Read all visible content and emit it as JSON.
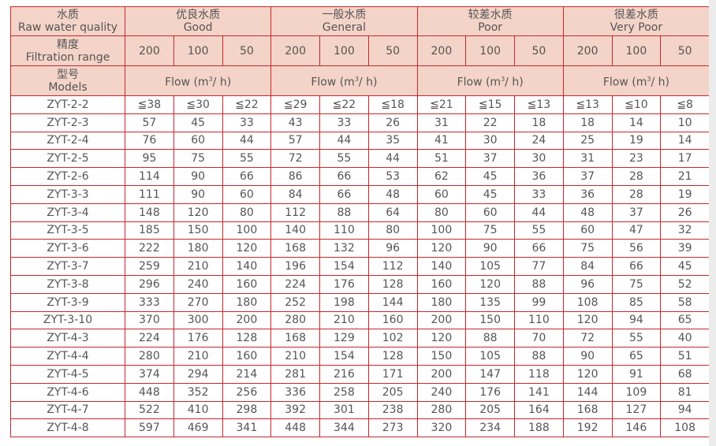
{
  "header": {
    "quality_label_cn": "水质",
    "quality_label_en": "Raw water quality",
    "range_label_cn": "精度",
    "range_label_en": "Filtration range",
    "model_label_cn": "型号",
    "model_label_en": "Models",
    "flow_label": "Flow (m",
    "flow_sup": "3",
    "flow_suffix": "/ h)",
    "groups": [
      {
        "cn": "优良水质",
        "en": "Good"
      },
      {
        "cn": "一般水质",
        "en": "General"
      },
      {
        "cn": "较差水质",
        "en": "Poor"
      },
      {
        "cn": "很差水质",
        "en": "Very Poor"
      }
    ],
    "ranges": [
      "200",
      "100",
      "50"
    ]
  },
  "rows": [
    [
      "ZYT-2-2",
      "≦38",
      "≦30",
      "≦22",
      "≦29",
      "≦22",
      "≦18",
      "≦21",
      "≦15",
      "≦13",
      "≦13",
      "≦10",
      "≦8"
    ],
    [
      "ZYT-2-3",
      "57",
      "45",
      "33",
      "43",
      "33",
      "26",
      "31",
      "22",
      "18",
      "18",
      "14",
      "10"
    ],
    [
      "ZYT-2-4",
      "76",
      "60",
      "44",
      "57",
      "44",
      "35",
      "41",
      "30",
      "24",
      "25",
      "19",
      "14"
    ],
    [
      "ZYT-2-5",
      "95",
      "75",
      "55",
      "72",
      "55",
      "44",
      "51",
      "37",
      "30",
      "31",
      "23",
      "17"
    ],
    [
      "ZYT-2-6",
      "114",
      "90",
      "66",
      "86",
      "66",
      "53",
      "62",
      "45",
      "36",
      "37",
      "28",
      "21"
    ],
    [
      "ZYT-3-3",
      "111",
      "90",
      "60",
      "84",
      "66",
      "48",
      "60",
      "45",
      "33",
      "36",
      "28",
      "19"
    ],
    [
      "ZYT-3-4",
      "148",
      "120",
      "80",
      "112",
      "88",
      "64",
      "80",
      "60",
      "44",
      "48",
      "37",
      "26"
    ],
    [
      "ZYT-3-5",
      "185",
      "150",
      "100",
      "140",
      "110",
      "80",
      "100",
      "75",
      "55",
      "60",
      "47",
      "32"
    ],
    [
      "ZYT-3-6",
      "222",
      "180",
      "120",
      "168",
      "132",
      "96",
      "120",
      "90",
      "66",
      "75",
      "56",
      "39"
    ],
    [
      "ZYT-3-7",
      "259",
      "210",
      "140",
      "196",
      "154",
      "112",
      "140",
      "105",
      "77",
      "84",
      "66",
      "45"
    ],
    [
      "ZYT-3-8",
      "296",
      "240",
      "160",
      "224",
      "176",
      "128",
      "160",
      "120",
      "88",
      "96",
      "75",
      "52"
    ],
    [
      "ZYT-3-9",
      "333",
      "270",
      "180",
      "252",
      "198",
      "144",
      "180",
      "135",
      "99",
      "108",
      "85",
      "58"
    ],
    [
      "ZYT-3-10",
      "370",
      "300",
      "200",
      "280",
      "210",
      "160",
      "200",
      "150",
      "110",
      "120",
      "94",
      "65"
    ],
    [
      "ZYT-4-3",
      "224",
      "176",
      "128",
      "168",
      "129",
      "102",
      "120",
      "88",
      "70",
      "72",
      "55",
      "40"
    ],
    [
      "ZYT-4-4",
      "280",
      "210",
      "160",
      "210",
      "154",
      "128",
      "150",
      "105",
      "88",
      "90",
      "65",
      "51"
    ],
    [
      "ZYT-4-5",
      "374",
      "294",
      "214",
      "281",
      "216",
      "171",
      "200",
      "147",
      "118",
      "120",
      "91",
      "68"
    ],
    [
      "ZYT-4-6",
      "448",
      "352",
      "256",
      "336",
      "258",
      "205",
      "240",
      "176",
      "141",
      "144",
      "109",
      "81"
    ],
    [
      "ZYT-4-7",
      "522",
      "410",
      "298",
      "392",
      "301",
      "238",
      "280",
      "205",
      "164",
      "168",
      "127",
      "94"
    ],
    [
      "ZYT-4-8",
      "597",
      "469",
      "341",
      "448",
      "344",
      "273",
      "320",
      "234",
      "188",
      "192",
      "146",
      "108"
    ]
  ]
}
